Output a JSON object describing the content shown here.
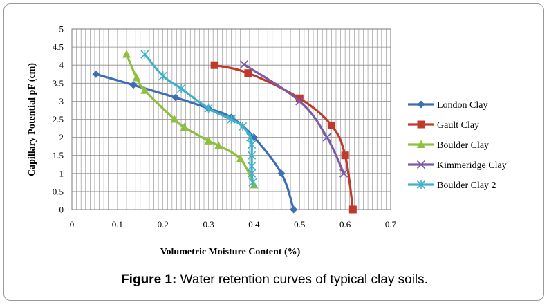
{
  "caption": {
    "label": "Figure 1:",
    "text": "Water retention curves of typical clay soils."
  },
  "chart_data": {
    "type": "line",
    "title": "",
    "xlabel": "Volumetric Moisture Content (%)",
    "ylabel": "Capillary Potential pF  (cm)",
    "xlim": [
      0,
      0.7
    ],
    "ylim": [
      0,
      5
    ],
    "xticks": [
      0,
      0.1,
      0.2,
      0.3,
      0.4,
      0.5,
      0.6,
      0.7
    ],
    "yticks": [
      0,
      0.5,
      1,
      1.5,
      2,
      2.5,
      3,
      3.5,
      4,
      4.5,
      5
    ],
    "grid": true,
    "legend_position": "right",
    "series": [
      {
        "name": "London Clay",
        "color": "#3d6db3",
        "marker": "diamond",
        "points": [
          [
            0.053,
            3.75
          ],
          [
            0.135,
            3.45
          ],
          [
            0.228,
            3.1
          ],
          [
            0.3,
            2.8
          ],
          [
            0.35,
            2.55
          ],
          [
            0.4,
            2.0
          ],
          [
            0.46,
            1.0
          ],
          [
            0.487,
            0.0
          ]
        ]
      },
      {
        "name": "Gault Clay",
        "color": "#c0392b",
        "marker": "square",
        "points": [
          [
            0.313,
            4.0
          ],
          [
            0.387,
            3.78
          ],
          [
            0.5,
            3.08
          ],
          [
            0.57,
            2.33
          ],
          [
            0.6,
            1.5
          ],
          [
            0.617,
            0.0
          ]
        ]
      },
      {
        "name": "Boulder Clay",
        "color": "#8fbf3f",
        "marker": "triangle",
        "points": [
          [
            0.12,
            4.3
          ],
          [
            0.142,
            3.65
          ],
          [
            0.16,
            3.3
          ],
          [
            0.225,
            2.5
          ],
          [
            0.247,
            2.28
          ],
          [
            0.3,
            1.9
          ],
          [
            0.322,
            1.77
          ],
          [
            0.37,
            1.4
          ],
          [
            0.4,
            0.68
          ]
        ]
      },
      {
        "name": "Kimmeridge Clay",
        "color": "#7b5aa6",
        "marker": "x",
        "points": [
          [
            0.378,
            4.02
          ],
          [
            0.5,
            3.0
          ],
          [
            0.56,
            2.0
          ],
          [
            0.597,
            1.0
          ]
        ]
      },
      {
        "name": "Boulder Clay 2",
        "color": "#3fb0c9",
        "marker": "asterisk",
        "points": [
          [
            0.16,
            4.3
          ],
          [
            0.2,
            3.7
          ],
          [
            0.24,
            3.35
          ],
          [
            0.3,
            2.8
          ],
          [
            0.35,
            2.5
          ],
          [
            0.375,
            2.3
          ],
          [
            0.392,
            2.0
          ],
          [
            0.395,
            1.8
          ],
          [
            0.395,
            1.5
          ],
          [
            0.395,
            1.2
          ],
          [
            0.395,
            1.0
          ],
          [
            0.397,
            0.75
          ]
        ]
      }
    ]
  }
}
